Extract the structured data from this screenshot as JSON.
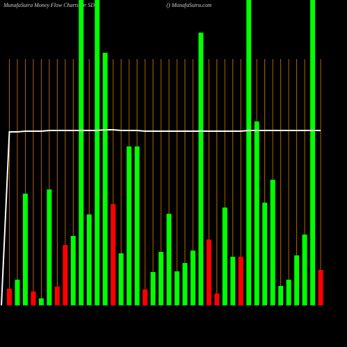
{
  "chart_data": {
    "type": "bar",
    "title": "MunafaSutra  Money Flow  Charts for SDSI",
    "subtitle": "() MunafaSutra.com",
    "ylim": [
      0,
      440
    ],
    "values": [
      24,
      37,
      161,
      20,
      10,
      167,
      27,
      87,
      100,
      440,
      131,
      440,
      364,
      146,
      75,
      229,
      229,
      23,
      48,
      77,
      132,
      49,
      61,
      79,
      393,
      95,
      17,
      141,
      70,
      70,
      440,
      265,
      148,
      181,
      28,
      37,
      72,
      102,
      440,
      51
    ],
    "colors": [
      "#ff0000",
      "#00ff00",
      "#00ff00",
      "#ff0000",
      "#00ff00",
      "#00ff00",
      "#ff0000",
      "#ff0000",
      "#00ff00",
      "#00ff00",
      "#00ff00",
      "#00ff00",
      "#00ff00",
      "#ff0000",
      "#00ff00",
      "#00ff00",
      "#00ff00",
      "#ff0000",
      "#00ff00",
      "#00ff00",
      "#00ff00",
      "#00ff00",
      "#00ff00",
      "#00ff00",
      "#00ff00",
      "#ff0000",
      "#ff0000",
      "#00ff00",
      "#00ff00",
      "#ff0000",
      "#00ff00",
      "#00ff00",
      "#00ff00",
      "#00ff00",
      "#00ff00",
      "#00ff00",
      "#00ff00",
      "#00ff00",
      "#00ff00",
      "#ff0000"
    ],
    "line": {
      "color": "#ffffff",
      "values": [
        250,
        250,
        251,
        251,
        251,
        252,
        252,
        252,
        252,
        252,
        252,
        252,
        253,
        253,
        252,
        252,
        252,
        251,
        251,
        251,
        251,
        251,
        251,
        251,
        251,
        251,
        251,
        251,
        251,
        251,
        252,
        252,
        252,
        252,
        252,
        252,
        252,
        252,
        252,
        252
      ]
    },
    "grid_color": "#b36200"
  }
}
